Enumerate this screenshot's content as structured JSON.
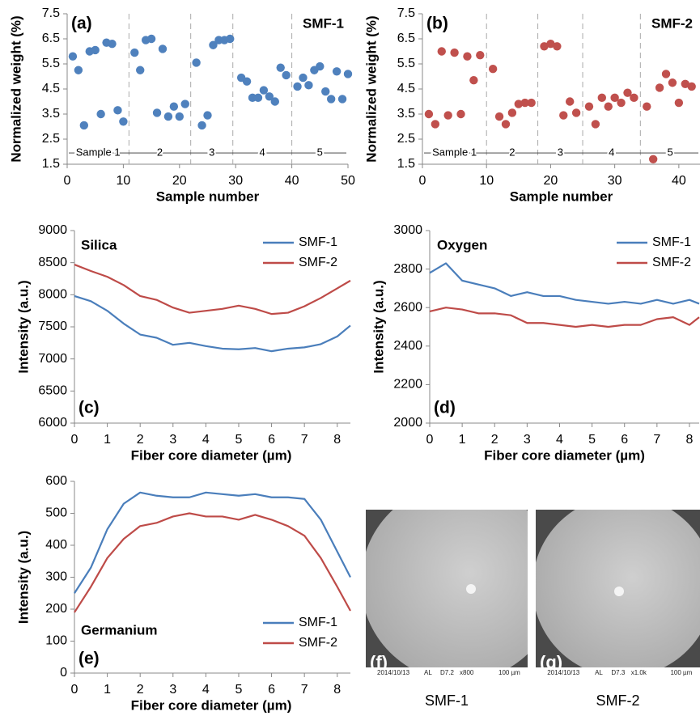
{
  "chart_data": [
    {
      "type": "scatter",
      "panel_label": "(a)",
      "annotation": "SMF-1",
      "x_label": "Sample number",
      "y_label": "Normalized weight (%)",
      "xlim": [
        0,
        50
      ],
      "xticks": [
        0,
        10,
        20,
        30,
        40,
        50
      ],
      "ylim": [
        1.5,
        7.5
      ],
      "yticks": [
        1.5,
        2.5,
        3.5,
        4.5,
        5.5,
        6.5,
        7.5
      ],
      "dividers": [
        11,
        22,
        29.5,
        40
      ],
      "sections": [
        "Sample 1",
        "2",
        "3",
        "4",
        "5"
      ],
      "section_y": 1.95,
      "series": [
        {
          "color": "#4f81bd",
          "x": [
            1,
            2,
            3,
            4,
            5,
            6,
            7,
            8,
            9,
            10,
            12,
            13,
            14,
            15,
            16,
            17,
            18,
            19,
            20,
            21,
            23,
            24,
            25,
            26,
            27,
            28,
            29,
            31,
            32,
            33,
            34,
            35,
            36,
            37,
            38,
            39,
            41,
            42,
            43,
            44,
            45,
            46,
            47,
            48,
            49,
            50
          ],
          "values": [
            5.8,
            5.25,
            3.05,
            6.0,
            6.05,
            3.5,
            6.35,
            6.3,
            3.65,
            3.2,
            5.95,
            5.25,
            6.45,
            6.5,
            3.55,
            6.1,
            3.4,
            3.8,
            3.4,
            3.9,
            5.55,
            3.05,
            3.45,
            6.25,
            6.45,
            6.45,
            6.5,
            4.95,
            4.8,
            4.15,
            4.15,
            4.45,
            4.2,
            4.0,
            5.35,
            5.05,
            4.6,
            4.95,
            4.65,
            5.25,
            5.4,
            4.4,
            4.1,
            5.2,
            4.1,
            5.1
          ]
        }
      ]
    },
    {
      "type": "scatter",
      "panel_label": "(b)",
      "annotation": "SMF-2",
      "x_label": "Sample number",
      "y_label": "Normalized weight (%)",
      "xlim": [
        0,
        43.3
      ],
      "xticks": [
        0,
        10,
        20,
        30,
        40
      ],
      "ylim": [
        1.5,
        7.5
      ],
      "yticks": [
        1.5,
        2.5,
        3.5,
        4.5,
        5.5,
        6.5,
        7.5
      ],
      "dividers": [
        10,
        18,
        25,
        34
      ],
      "sections": [
        "Sample 1",
        "2",
        "3",
        "4",
        "5"
      ],
      "section_y": 1.95,
      "series": [
        {
          "color": "#c0504d",
          "x": [
            1,
            2,
            3,
            4,
            5,
            6,
            7,
            8,
            9,
            11,
            12,
            13,
            14,
            15,
            16,
            17,
            19,
            20,
            21,
            22,
            23,
            24,
            26,
            27,
            28,
            29,
            30,
            31,
            32,
            33,
            35,
            36,
            37,
            38,
            39,
            40,
            41,
            42
          ],
          "values": [
            3.5,
            3.1,
            6.0,
            3.45,
            5.95,
            3.5,
            5.8,
            4.85,
            5.85,
            5.3,
            3.4,
            3.1,
            3.55,
            3.9,
            3.95,
            3.95,
            6.2,
            6.3,
            6.2,
            3.45,
            4.0,
            3.55,
            3.8,
            3.1,
            4.15,
            3.8,
            4.15,
            3.95,
            4.35,
            4.15,
            3.8,
            1.7,
            4.55,
            5.1,
            4.75,
            3.95,
            4.7,
            4.6
          ]
        }
      ]
    },
    {
      "type": "line",
      "panel_label": "(c)",
      "annotation": "Silica",
      "x_label": "Fiber core diameter (µm)",
      "y_label": "Intensity (a.u.)",
      "legend": "top-right",
      "xlim": [
        0,
        8.4
      ],
      "xticks": [
        0,
        1,
        2,
        3,
        4,
        5,
        6,
        7,
        8
      ],
      "ylim": [
        6000,
        9000
      ],
      "yticks": [
        6000,
        6500,
        7000,
        7500,
        8000,
        8500,
        9000
      ],
      "x": [
        0,
        0.5,
        1,
        1.5,
        2,
        2.5,
        3,
        3.5,
        4,
        4.5,
        5,
        5.5,
        6,
        6.5,
        7,
        7.5,
        8,
        8.4
      ],
      "series": [
        {
          "name": "SMF-1",
          "color": "#4a7ebb",
          "values": [
            7980,
            7900,
            7750,
            7550,
            7380,
            7330,
            7220,
            7250,
            7200,
            7160,
            7150,
            7170,
            7120,
            7160,
            7180,
            7230,
            7350,
            7520
          ]
        },
        {
          "name": "SMF-2",
          "color": "#be4b48",
          "values": [
            8470,
            8370,
            8280,
            8150,
            7980,
            7920,
            7800,
            7720,
            7750,
            7780,
            7830,
            7780,
            7700,
            7720,
            7820,
            7950,
            8100,
            8220
          ]
        }
      ]
    },
    {
      "type": "line",
      "panel_label": "(d)",
      "annotation": "Oxygen",
      "x_label": "Fiber core diameter (µm)",
      "y_label": "Intensity (a.u.)",
      "legend": "top-right",
      "xlim": [
        0,
        8.3
      ],
      "xticks": [
        0,
        1,
        2,
        3,
        4,
        5,
        6,
        7,
        8
      ],
      "ylim": [
        2000,
        3000
      ],
      "yticks": [
        2000,
        2200,
        2400,
        2600,
        2800,
        3000
      ],
      "x": [
        0,
        0.5,
        1,
        1.5,
        2,
        2.5,
        3,
        3.5,
        4,
        4.5,
        5,
        5.5,
        6,
        6.5,
        7,
        7.5,
        8,
        8.3
      ],
      "series": [
        {
          "name": "SMF-1",
          "color": "#4a7ebb",
          "values": [
            2780,
            2830,
            2740,
            2720,
            2700,
            2660,
            2680,
            2660,
            2660,
            2640,
            2630,
            2620,
            2630,
            2620,
            2640,
            2620,
            2640,
            2620
          ]
        },
        {
          "name": "SMF-2",
          "color": "#be4b48",
          "values": [
            2580,
            2600,
            2590,
            2570,
            2570,
            2560,
            2520,
            2520,
            2510,
            2500,
            2510,
            2500,
            2510,
            2510,
            2540,
            2550,
            2510,
            2550
          ]
        }
      ]
    },
    {
      "type": "line",
      "panel_label": "(e)",
      "annotation": "Germanium",
      "x_label": "Fiber core diameter (µm)",
      "y_label": "Intensity (a.u.)",
      "legend": "bottom-right",
      "xlim": [
        0,
        8.4
      ],
      "xticks": [
        0,
        1,
        2,
        3,
        4,
        5,
        6,
        7,
        8
      ],
      "ylim": [
        0,
        600
      ],
      "yticks": [
        0,
        100,
        200,
        300,
        400,
        500,
        600
      ],
      "x": [
        0,
        0.5,
        1,
        1.5,
        2,
        2.5,
        3,
        3.5,
        4,
        4.5,
        5,
        5.5,
        6,
        6.5,
        7,
        7.5,
        8,
        8.4
      ],
      "series": [
        {
          "name": "SMF-1",
          "color": "#4a7ebb",
          "values": [
            250,
            330,
            450,
            530,
            565,
            555,
            550,
            550,
            565,
            560,
            555,
            560,
            550,
            550,
            545,
            480,
            380,
            300
          ]
        },
        {
          "name": "SMF-2",
          "color": "#be4b48",
          "values": [
            190,
            270,
            360,
            420,
            460,
            470,
            490,
            500,
            490,
            490,
            480,
            495,
            480,
            460,
            430,
            360,
            270,
            195
          ]
        }
      ]
    }
  ],
  "images": [
    {
      "label": "(f)",
      "caption": "SMF-1",
      "scale_bar": [
        "2014/10/13",
        "AL",
        "D7.2",
        "x800",
        "100 µm"
      ]
    },
    {
      "label": "(g)",
      "caption": "SMF-2",
      "scale_bar": [
        "2014/10/13",
        "AL",
        "D7.3",
        "x1.0k",
        "100 µm"
      ]
    }
  ]
}
